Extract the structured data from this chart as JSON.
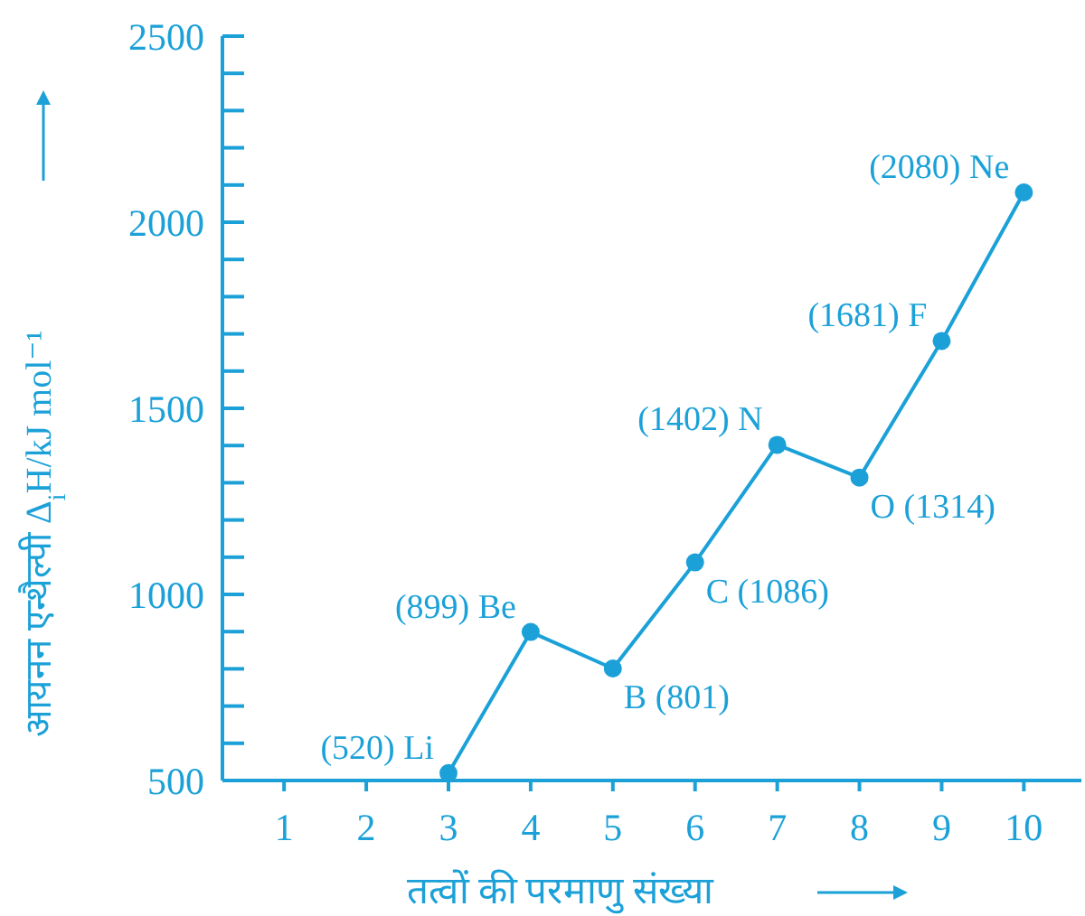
{
  "chart_data": {
    "type": "line",
    "xlabel": "तत्वों की परमाणु संख्या",
    "ylabel": "आयनन एन्थैल्पी Δ$_{i}$H/kJ mol⁻¹",
    "x": [
      3,
      4,
      5,
      6,
      7,
      8,
      9,
      10
    ],
    "series": [
      {
        "color": "#1ba1d8",
        "values": [
          520,
          899,
          801,
          1086,
          1402,
          1314,
          1681,
          2080
        ]
      }
    ],
    "marker": "circle",
    "line_style": "solid",
    "grid": false,
    "xlim": [
      0.25,
      10.7
    ],
    "xticks": [
      1,
      2,
      3,
      4,
      5,
      6,
      7,
      8,
      9,
      10
    ],
    "ylim": [
      500,
      2500
    ],
    "yticks": [
      500,
      {
        "value": 600,
        "label": null
      },
      {
        "value": 700,
        "label": null
      },
      {
        "value": 800,
        "label": null
      },
      {
        "value": 900,
        "label": null
      },
      1000,
      {
        "value": 1100,
        "label": null
      },
      {
        "value": 1200,
        "label": null
      },
      {
        "value": 1300,
        "label": null
      },
      {
        "value": 1400,
        "label": null
      },
      1500,
      {
        "value": 1600,
        "label": null
      },
      {
        "value": 1700,
        "label": null
      },
      {
        "value": 1800,
        "label": null
      },
      {
        "value": 1900,
        "label": null
      },
      2000,
      {
        "value": 2100,
        "label": null
      },
      {
        "value": 2200,
        "label": null
      },
      {
        "value": 2300,
        "label": null
      },
      {
        "value": 2400,
        "label": null
      },
      2500
    ],
    "annotations": [
      {
        "text": "(520) Li",
        "x": 3,
        "y": 520
      },
      {
        "text": "(899) Be",
        "x": 4,
        "y": 899
      },
      {
        "text": "B (801)",
        "x": 5,
        "y": 801
      },
      {
        "text": "C (1086)",
        "x": 6,
        "y": 1086
      },
      {
        "text": "(1402) N",
        "x": 7,
        "y": 1402
      },
      {
        "text": "O (1314)",
        "x": 8,
        "y": 1314
      },
      {
        "text": "(1681) F",
        "x": 9,
        "y": 1681
      },
      {
        "text": "(2080) Ne",
        "x": 10,
        "y": 2080
      }
    ]
  }
}
